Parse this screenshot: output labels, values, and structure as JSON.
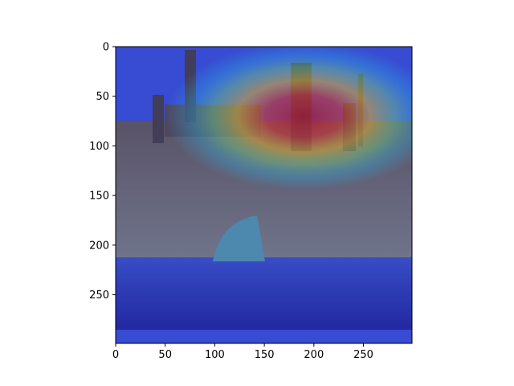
{
  "chart_data": {
    "type": "heatmap",
    "title": "",
    "xlabel": "",
    "ylabel": "",
    "image_description": "Grad-CAM style heatmap (jet colormap) overlaid on a photo of a historic warship moored at a dock",
    "xlim": [
      0,
      299
    ],
    "ylim": [
      299,
      0
    ],
    "x_ticks": [
      0,
      50,
      100,
      150,
      200,
      250
    ],
    "y_ticks": [
      0,
      50,
      100,
      150,
      200,
      250
    ],
    "x_tick_labels": [
      "0",
      "50",
      "100",
      "150",
      "200",
      "250"
    ],
    "y_tick_labels": [
      "0",
      "50",
      "100",
      "150",
      "200",
      "250"
    ],
    "colormap": "jet",
    "grid": false,
    "heat_peak_center": [
      190,
      70
    ],
    "heat_peak_radius": [
      140,
      75
    ]
  }
}
